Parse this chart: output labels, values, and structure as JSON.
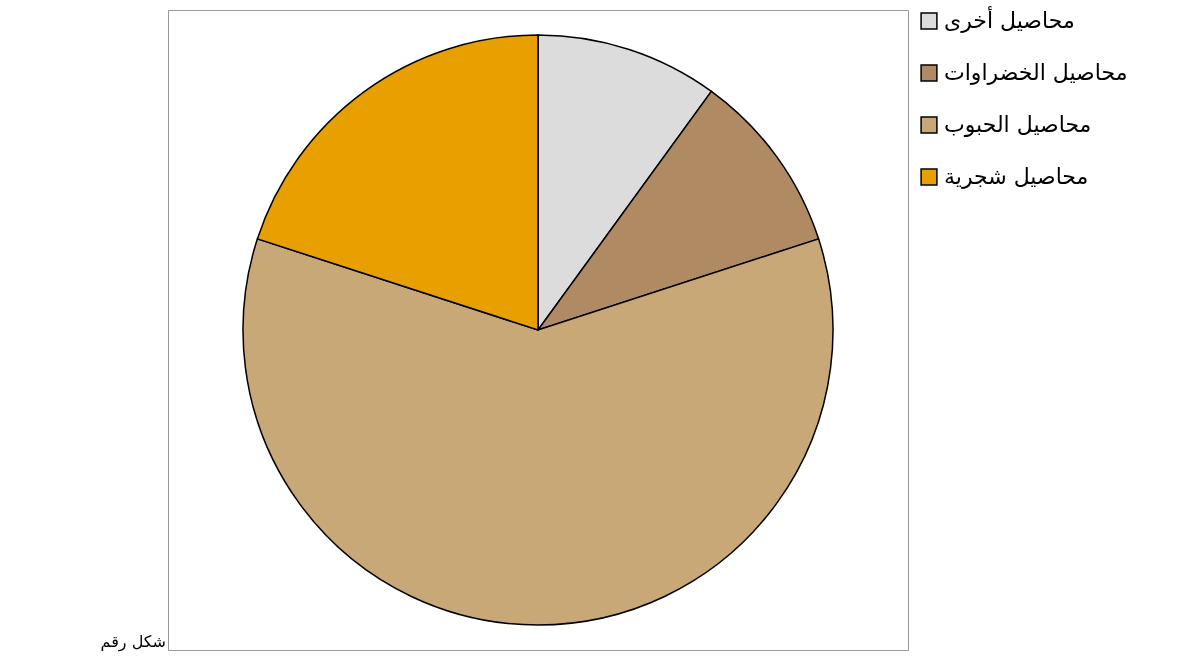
{
  "chart_data": {
    "type": "pie",
    "categories": [
      "محاصيل أخرى",
      "محاصيل الخضراوات",
      "محاصيل الحبوب",
      "محاصيل شجرية"
    ],
    "values": [
      10,
      10,
      60,
      20
    ],
    "colors": [
      "#dcdcdc",
      "#b08a62",
      "#c9a877",
      "#e8a000"
    ],
    "legend": "right",
    "annotations": [
      "شكل رقم"
    ]
  }
}
